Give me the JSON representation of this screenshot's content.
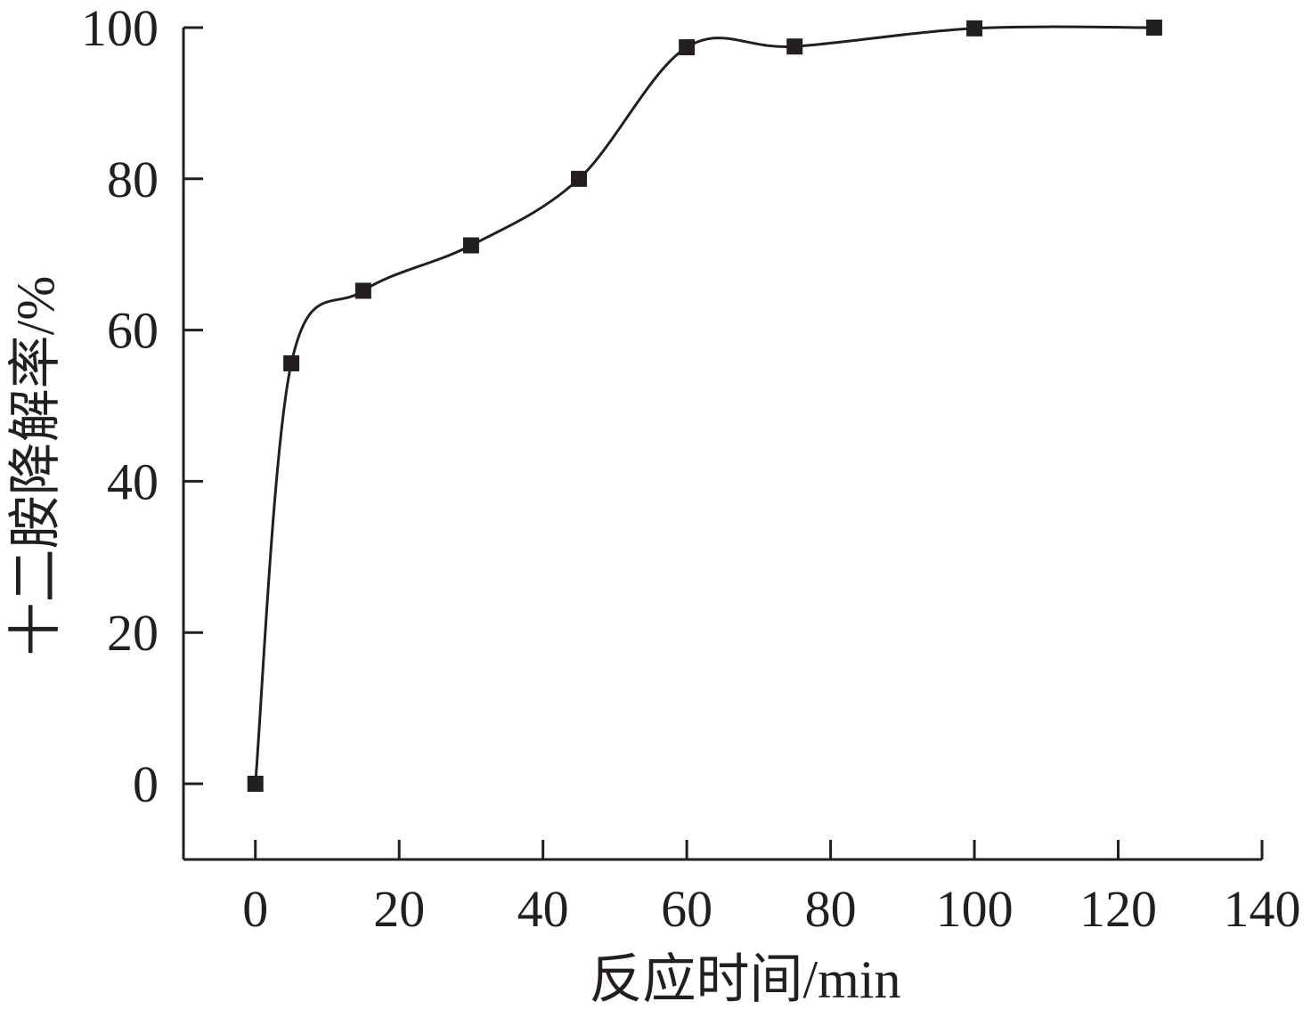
{
  "chart_data": {
    "type": "scatter",
    "title": "",
    "xlabel": "反应时间/min",
    "ylabel": "十二胺降解率/%",
    "xlim": [
      -10,
      140
    ],
    "ylim": [
      -10,
      100
    ],
    "xticks": [
      0,
      20,
      40,
      60,
      80,
      100,
      120,
      140
    ],
    "yticks": [
      0,
      20,
      40,
      60,
      80,
      100
    ],
    "xtick_labels": [
      "0",
      "20",
      "40",
      "60",
      "80",
      "100",
      "120",
      "140"
    ],
    "ytick_labels": [
      "0",
      "20",
      "40",
      "60",
      "80",
      "100"
    ],
    "grid": false,
    "legend": "none",
    "series": [
      {
        "marker": "square",
        "smooth_line": true,
        "color": "#231f20",
        "x": [
          0,
          5,
          15,
          30,
          45,
          60,
          75,
          100,
          125
        ],
        "y": [
          0,
          55.6,
          65.2,
          71.2,
          80.0,
          97.4,
          97.5,
          99.9,
          100.0
        ]
      }
    ]
  }
}
